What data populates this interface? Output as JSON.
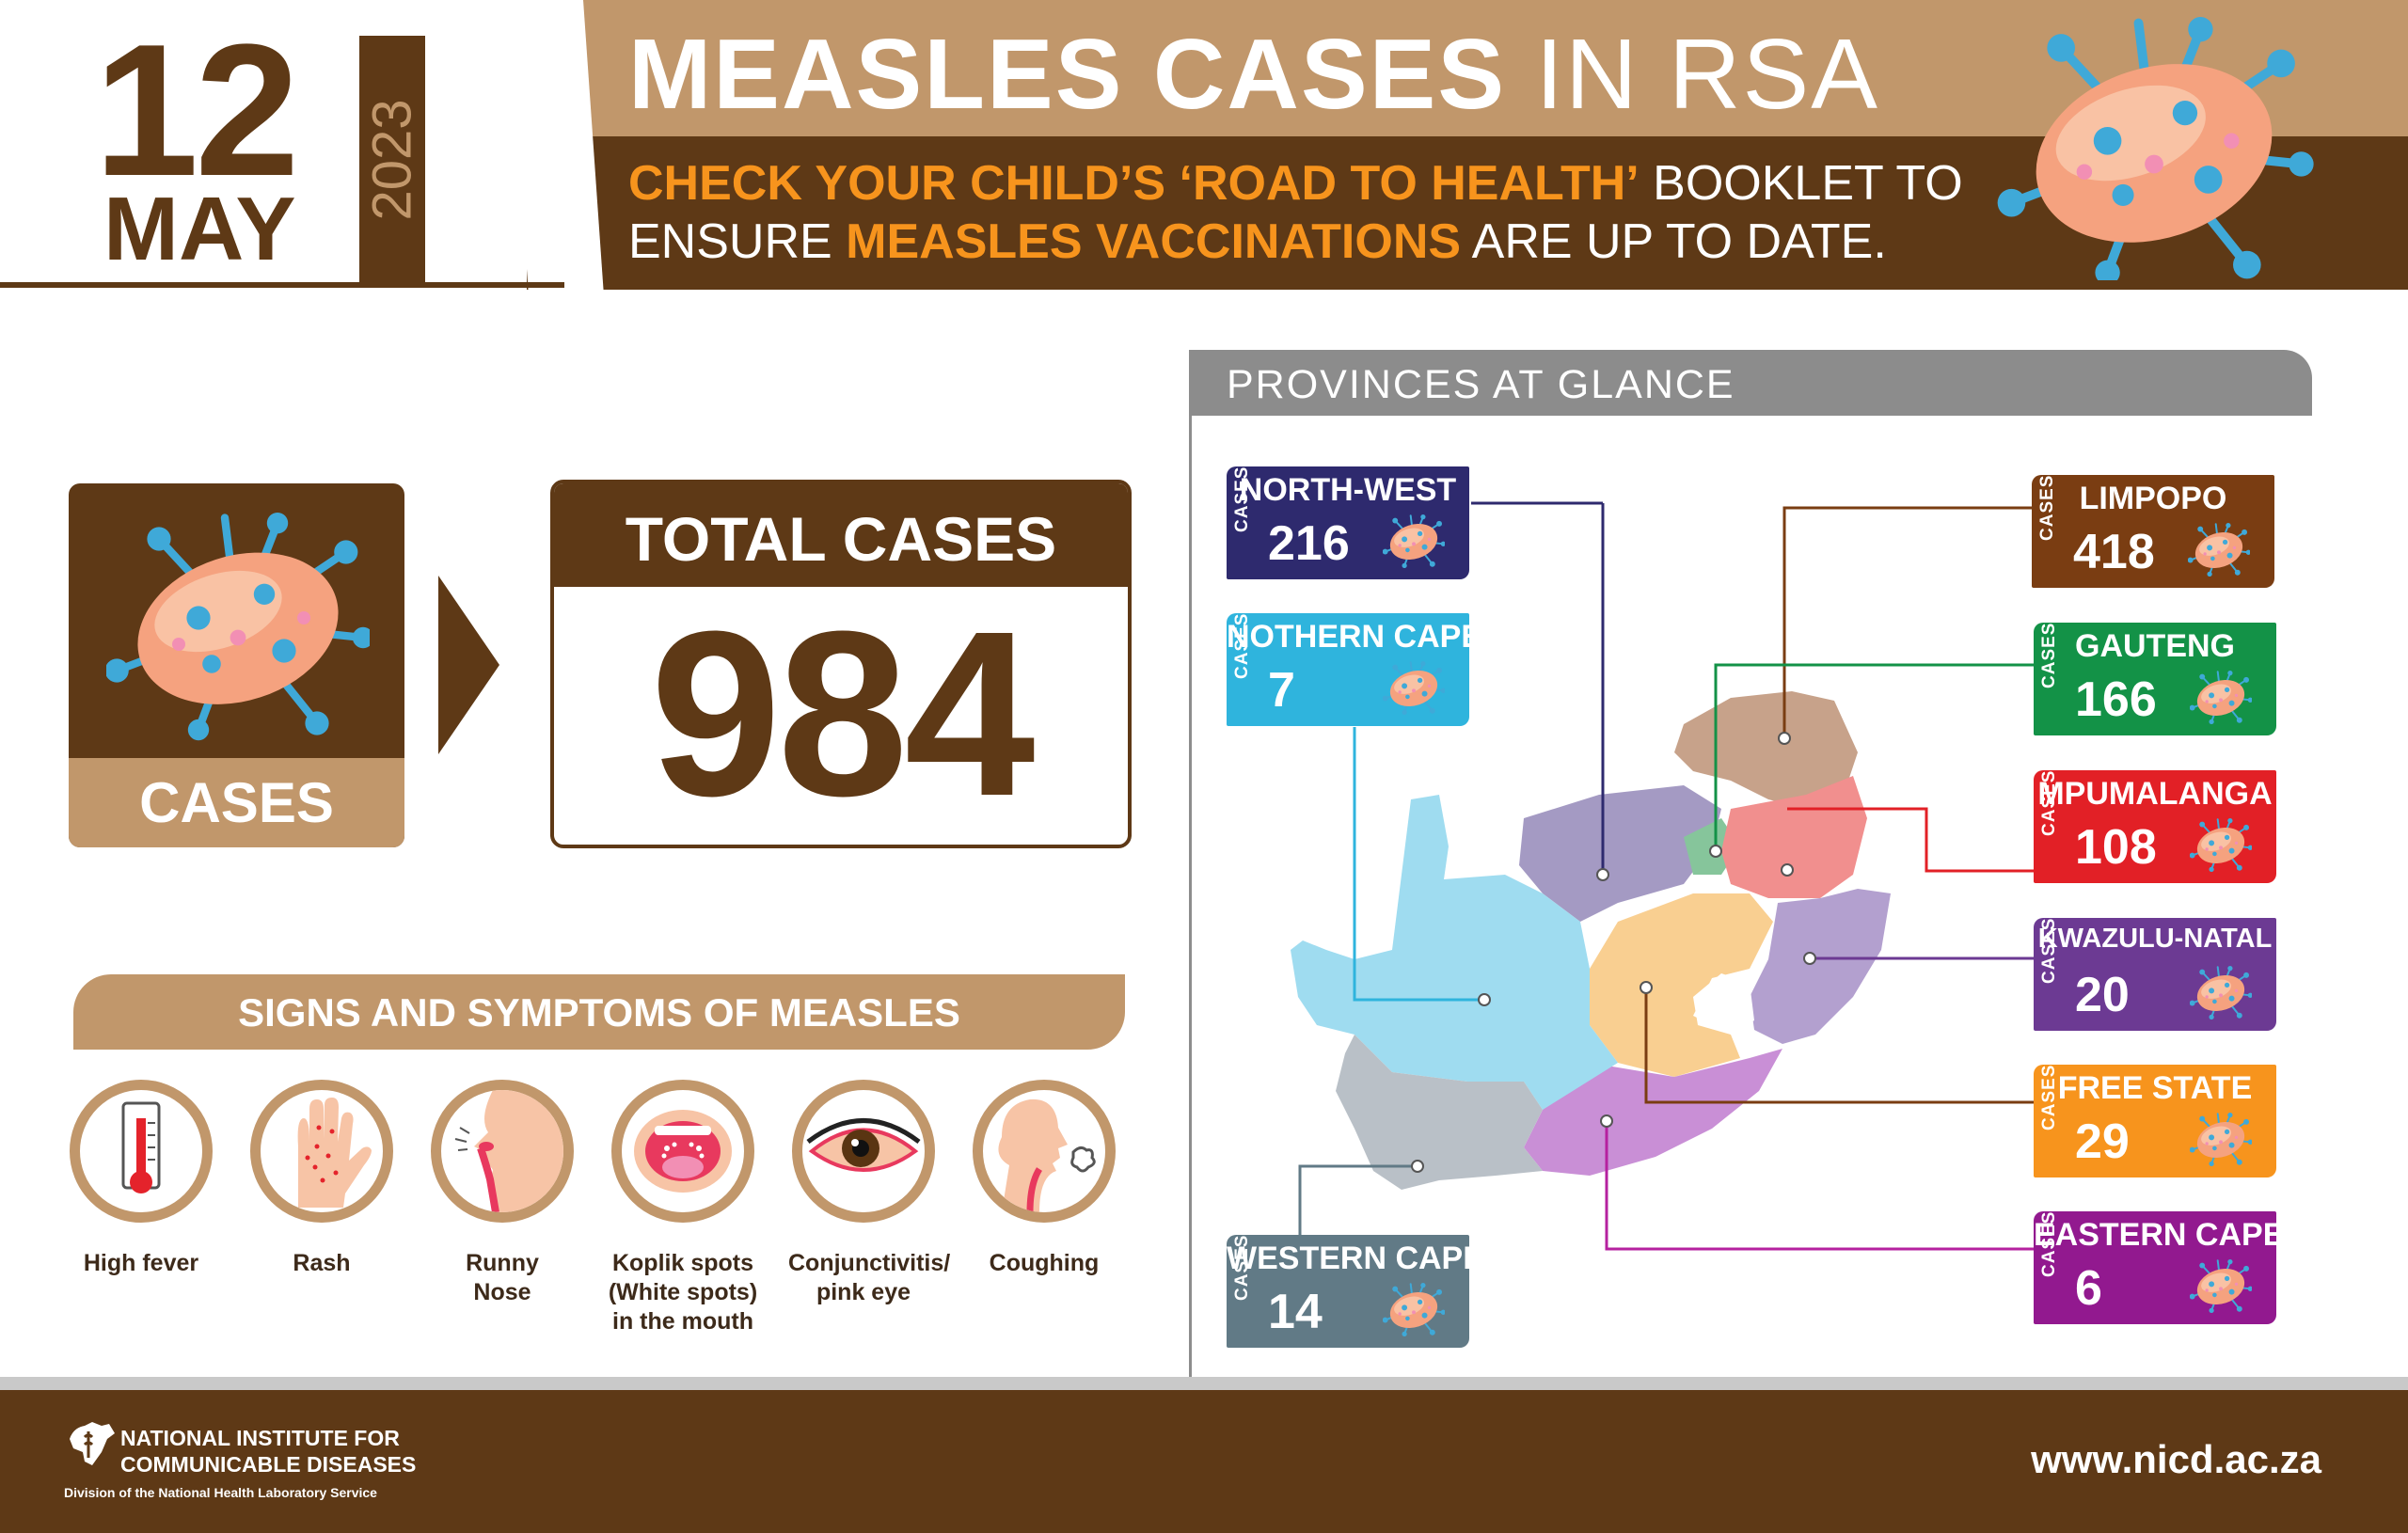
{
  "header": {
    "day": "12",
    "month": "MAY",
    "year": "2023",
    "title_bold": "MEASLES CASES",
    "title_rest": "IN RSA",
    "sub_line1_highlight": "CHECK YOUR CHILD’S ‘ROAD TO HEALTH’",
    "sub_line1_rest": "BOOKLET TO",
    "sub_line2_start": "ENSURE",
    "sub_line2_highlight": "MEASLES VACCINATIONS",
    "sub_line2_rest": "ARE UP TO DATE."
  },
  "summary": {
    "cases_label": "CASES",
    "total_label": "TOTAL CASES",
    "total_value": "984"
  },
  "symptoms": {
    "title": "SIGNS AND SYMPTOMS OF MEASLES",
    "items": [
      {
        "label": "High fever",
        "icon": "thermometer-icon"
      },
      {
        "label": "Rash",
        "icon": "hand-rash-icon"
      },
      {
        "label": "Runny\nNose",
        "icon": "runny-nose-icon"
      },
      {
        "label": "Koplik spots\n(White spots)\nin the mouth",
        "icon": "mouth-spots-icon"
      },
      {
        "label": "Conjunctivitis/\npink eye",
        "icon": "pink-eye-icon"
      },
      {
        "label": "Coughing",
        "icon": "coughing-icon"
      }
    ]
  },
  "provinces": {
    "title": "PROVINCES AT GLANCE",
    "cases_tag": "CASES",
    "items": [
      {
        "name": "NORTH-WEST",
        "value": "216",
        "color": "#2e2a6e"
      },
      {
        "name": "NOTHERN CAPE",
        "value": "7",
        "color": "#2fb4dd"
      },
      {
        "name": "WESTERN CAPE",
        "value": "14",
        "color": "#617a86"
      },
      {
        "name": "LIMPOPO",
        "value": "418",
        "color": "#7a3d12"
      },
      {
        "name": "GAUTENG",
        "value": "166",
        "color": "#139247"
      },
      {
        "name": "MPUMALANGA",
        "value": "108",
        "color": "#e22026"
      },
      {
        "name": "KWAZULU-NATAL",
        "value": "20",
        "color": "#6c3a93"
      },
      {
        "name": "FREE STATE",
        "value": "29",
        "color": "#f7941d"
      },
      {
        "name": "EASTERN CAPE",
        "value": "6",
        "color": "#92198f"
      }
    ]
  },
  "footer": {
    "org_line1": "NATIONAL INSTITUTE FOR",
    "org_line2": "COMMUNICABLE DISEASES",
    "division": "Division of the National Health Laboratory Service",
    "url": "www.nicd.ac.za"
  }
}
